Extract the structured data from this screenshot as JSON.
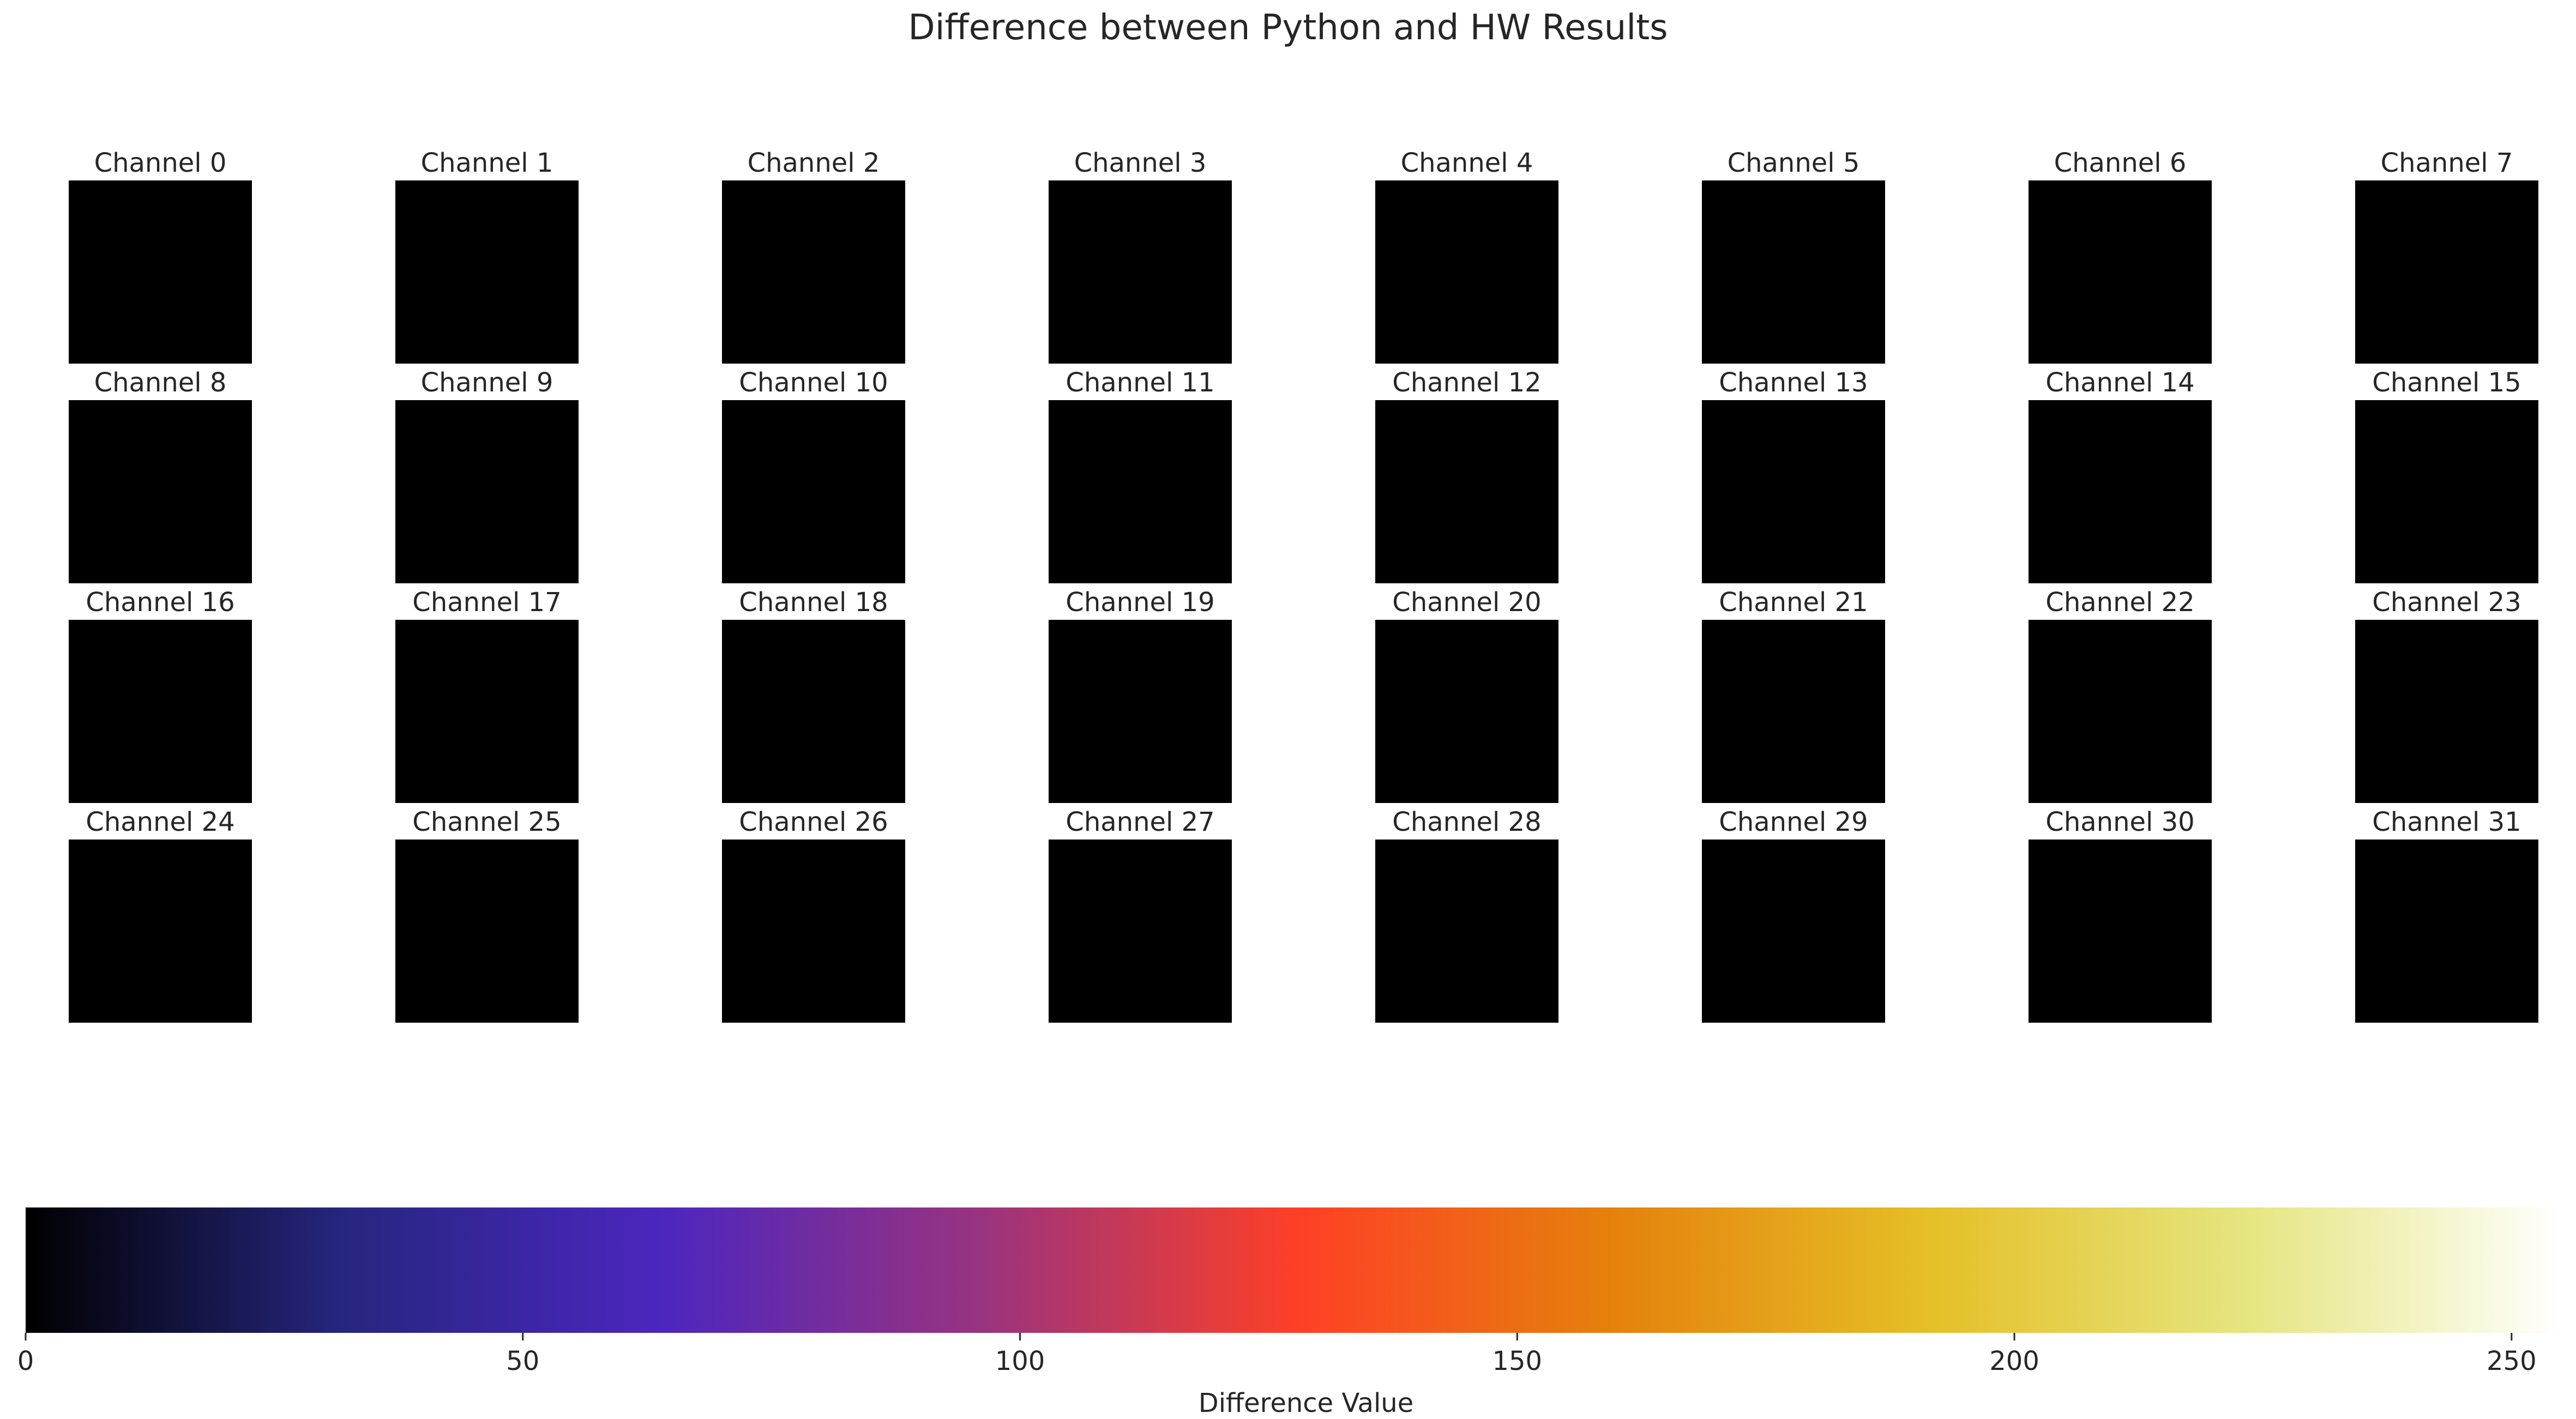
{
  "chart_data": {
    "type": "heatmap",
    "title": "Difference between Python and HW Results",
    "grid": false,
    "panels": [
      {
        "label": "Channel 0",
        "max_difference": 0
      },
      {
        "label": "Channel 1",
        "max_difference": 0
      },
      {
        "label": "Channel 2",
        "max_difference": 0
      },
      {
        "label": "Channel 3",
        "max_difference": 0
      },
      {
        "label": "Channel 4",
        "max_difference": 0
      },
      {
        "label": "Channel 5",
        "max_difference": 0
      },
      {
        "label": "Channel 6",
        "max_difference": 0
      },
      {
        "label": "Channel 7",
        "max_difference": 0
      },
      {
        "label": "Channel 8",
        "max_difference": 0
      },
      {
        "label": "Channel 9",
        "max_difference": 0
      },
      {
        "label": "Channel 10",
        "max_difference": 0
      },
      {
        "label": "Channel 11",
        "max_difference": 0
      },
      {
        "label": "Channel 12",
        "max_difference": 0
      },
      {
        "label": "Channel 13",
        "max_difference": 0
      },
      {
        "label": "Channel 14",
        "max_difference": 0
      },
      {
        "label": "Channel 15",
        "max_difference": 0
      },
      {
        "label": "Channel 16",
        "max_difference": 0
      },
      {
        "label": "Channel 17",
        "max_difference": 0
      },
      {
        "label": "Channel 18",
        "max_difference": 0
      },
      {
        "label": "Channel 19",
        "max_difference": 0
      },
      {
        "label": "Channel 20",
        "max_difference": 0
      },
      {
        "label": "Channel 21",
        "max_difference": 0
      },
      {
        "label": "Channel 22",
        "max_difference": 0
      },
      {
        "label": "Channel 23",
        "max_difference": 0
      },
      {
        "label": "Channel 24",
        "max_difference": 0
      },
      {
        "label": "Channel 25",
        "max_difference": 0
      },
      {
        "label": "Channel 26",
        "max_difference": 0
      },
      {
        "label": "Channel 27",
        "max_difference": 0
      },
      {
        "label": "Channel 28",
        "max_difference": 0
      },
      {
        "label": "Channel 29",
        "max_difference": 0
      },
      {
        "label": "Channel 30",
        "max_difference": 0
      },
      {
        "label": "Channel 31",
        "max_difference": 0
      }
    ],
    "colorbar": {
      "label": "Difference Value",
      "range": [
        0,
        255
      ],
      "ticks": [
        0,
        50,
        100,
        150,
        200,
        250
      ],
      "tick_labels": [
        "0",
        "50",
        "100",
        "150",
        "200",
        "250"
      ],
      "colormap": "CMRmap",
      "colormap_stops": [
        {
          "value": 0,
          "color": "#000000"
        },
        {
          "value": 32,
          "color": "#26267f"
        },
        {
          "value": 64,
          "color": "#4c26bf"
        },
        {
          "value": 96,
          "color": "#99337f"
        },
        {
          "value": 128,
          "color": "#ff3f26"
        },
        {
          "value": 159,
          "color": "#e5800c"
        },
        {
          "value": 191,
          "color": "#e5bf26"
        },
        {
          "value": 223,
          "color": "#e5e57f"
        },
        {
          "value": 255,
          "color": "#ffffff"
        }
      ]
    }
  }
}
